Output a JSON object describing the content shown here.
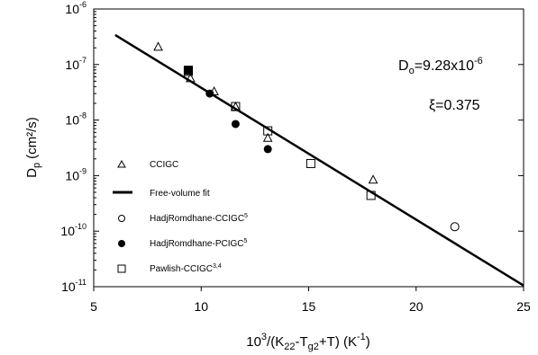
{
  "chart_data": {
    "type": "scatter",
    "x_axis": {
      "label": "10³/(K₂₂-Tg₂+T) (K⁻¹)",
      "label_parts": {
        "base": "10",
        "base_exp": "3",
        "open": "/(K",
        "k_sub": "22",
        "mid": "-T",
        "t_sub": "g2",
        "close": "+T) (K",
        "unit_exp": "-1",
        "end": ")"
      },
      "ticks": [
        "5",
        "10",
        "15",
        "20",
        "25"
      ],
      "range": [
        5,
        25
      ]
    },
    "y_axis": {
      "label": "Dₚ (cm²/s)",
      "label_parts": {
        "base": "D",
        "sub": "p",
        "unit": "(cm²/s)"
      },
      "scale": "log",
      "range": [
        1e-11,
        1e-06
      ],
      "tick_base": "10",
      "tick_exponents": [
        "-6",
        "-7",
        "-8",
        "-9",
        "-10",
        "-11"
      ],
      "tick_values": [
        1e-06,
        1e-07,
        1e-08,
        1e-09,
        1e-10,
        1e-11
      ]
    },
    "annotations": {
      "d0": {
        "prefix": "D",
        "sub": "o",
        "value": "=9.28x10",
        "exp": "-6"
      },
      "xi": "ξ=0.375"
    },
    "legend": {
      "position": "lower-left",
      "entries": [
        {
          "label": "CCIGC",
          "sup": "",
          "marker": "open-triangle"
        },
        {
          "label": "Free-volume fit",
          "sup": "",
          "marker": "line"
        },
        {
          "label": "HadjRomdhane-CCIGC",
          "sup": "5",
          "marker": "open-circle"
        },
        {
          "label": "HadjRomdhane-PCIGC",
          "sup": "5",
          "marker": "filled-circle"
        },
        {
          "label": "Pawlish-CCIGC",
          "sup": "3,4",
          "marker": "open-square"
        }
      ]
    },
    "series": [
      {
        "name": "CCIGC",
        "marker": "open-triangle",
        "points": [
          [
            8.0,
            2.1e-07
          ],
          [
            9.5,
            5.7e-08
          ],
          [
            10.6,
            3.3e-08
          ],
          [
            11.6,
            1.75e-08
          ],
          [
            13.1,
            4.8e-09
          ],
          [
            18.0,
            8.5e-10
          ]
        ]
      },
      {
        "name": "Free-volume fit",
        "marker": "line",
        "points": [
          [
            6.0,
            3.4e-07
          ],
          [
            25.0,
            1.05e-11
          ]
        ]
      },
      {
        "name": "HadjRomdhane-CCIGC",
        "marker": "open-circle",
        "points": [
          [
            21.8,
            1.2e-10
          ]
        ]
      },
      {
        "name": "HadjRomdhane-PCIGC",
        "marker": "filled-circle",
        "points": [
          [
            10.4,
            3e-08
          ],
          [
            11.6,
            8.5e-09
          ],
          [
            13.1,
            3e-09
          ]
        ]
      },
      {
        "name": "Pawlish-CCIGC",
        "marker": "open-square",
        "points": [
          [
            9.4,
            7.5e-08
          ],
          [
            11.6,
            1.75e-08
          ],
          [
            13.1,
            6.4e-09
          ],
          [
            15.1,
            1.65e-09
          ],
          [
            17.9,
            4.4e-10
          ]
        ]
      },
      {
        "name": "Filled square",
        "marker": "filled-square",
        "points": [
          [
            9.4,
            7.9e-08
          ]
        ]
      }
    ]
  }
}
